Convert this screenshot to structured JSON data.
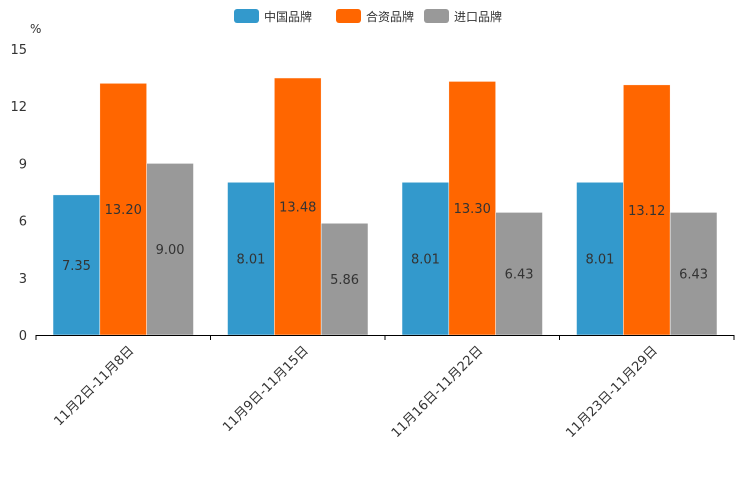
{
  "chart_data": {
    "type": "bar",
    "title": "",
    "xlabel": "",
    "ylabel": "%",
    "ylim": [
      0,
      15
    ],
    "yticks": [
      0,
      3,
      6,
      9,
      12,
      15
    ],
    "grid": false,
    "legend_position": "top-center",
    "categories": [
      "11月2日-11月8日",
      "11月9日-11月15日",
      "11月16日-11月22日",
      "11月23日-11月29日"
    ],
    "series": [
      {
        "name": "中国品牌",
        "color": "#3399cc",
        "values": [
          7.35,
          8.01,
          8.01,
          8.01
        ],
        "labels": [
          "7.35",
          "8.01",
          "8.01",
          "8.01"
        ]
      },
      {
        "name": "合资品牌",
        "color": "#ff6600",
        "values": [
          13.2,
          13.48,
          13.3,
          13.12
        ],
        "labels": [
          "13.20",
          "13.48",
          "13.30",
          "13.12"
        ]
      },
      {
        "name": "进口品牌",
        "color": "#999999",
        "values": [
          9.0,
          5.86,
          6.43,
          6.43
        ],
        "labels": [
          "9.00",
          "5.86",
          "6.43",
          "6.43"
        ]
      }
    ]
  }
}
